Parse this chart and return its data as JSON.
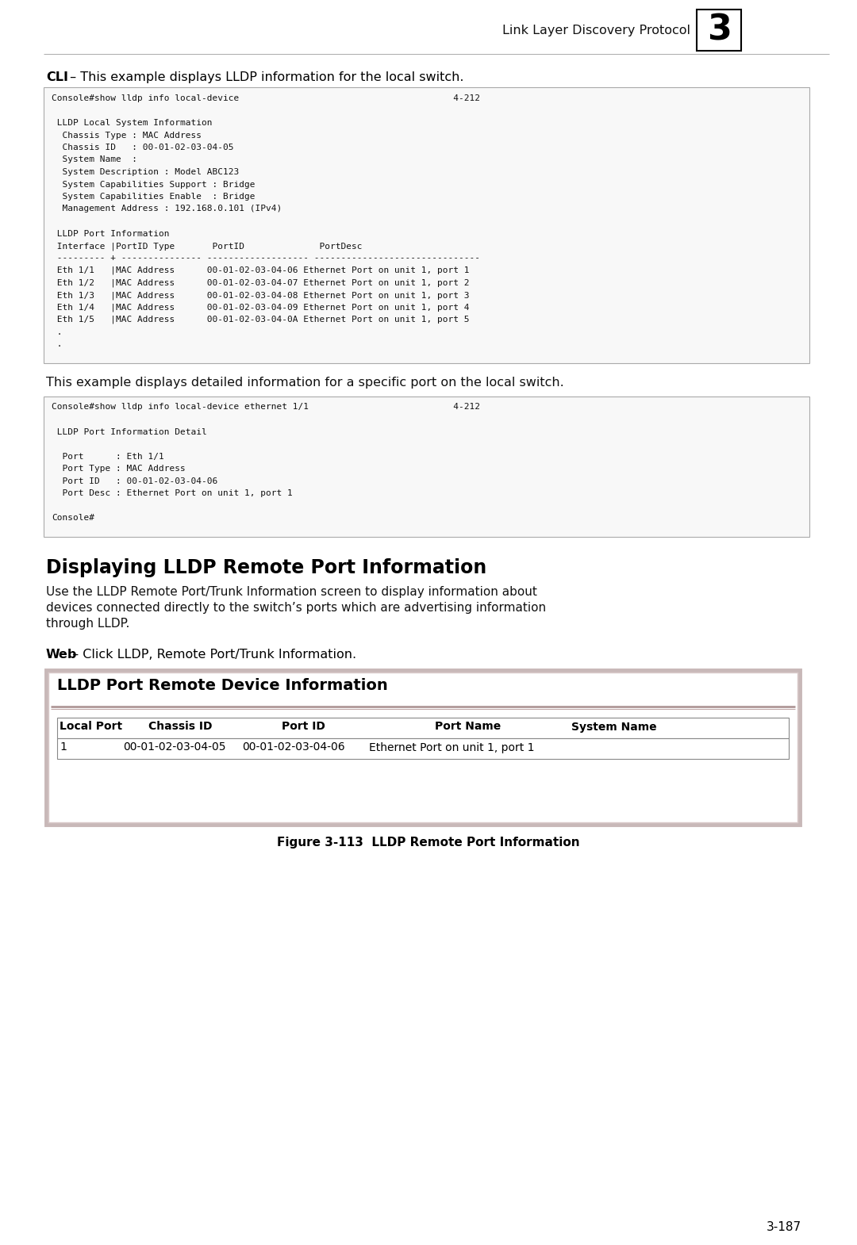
{
  "page_bg": "#ffffff",
  "header_text": "Link Layer Discovery Protocol",
  "header_chapter": "3",
  "cli_label_bold": "CLI",
  "cli_label_rest": " – This example displays LLDP information for the local switch.",
  "box1_lines": [
    "Console#show lldp info local-device                                        4-212",
    "",
    " LLDP Local System Information",
    "  Chassis Type : MAC Address",
    "  Chassis ID   : 00-01-02-03-04-05",
    "  System Name  :",
    "  System Description : Model ABC123",
    "  System Capabilities Support : Bridge",
    "  System Capabilities Enable  : Bridge",
    "  Management Address : 192.168.0.101 (IPv4)",
    "",
    " LLDP Port Information",
    " Interface |PortID Type       PortID              PortDesc",
    " --------- + --------------- ------------------- -------------------------------",
    " Eth 1/1   |MAC Address      00-01-02-03-04-06 Ethernet Port on unit 1, port 1",
    " Eth 1/2   |MAC Address      00-01-02-03-04-07 Ethernet Port on unit 1, port 2",
    " Eth 1/3   |MAC Address      00-01-02-03-04-08 Ethernet Port on unit 1, port 3",
    " Eth 1/4   |MAC Address      00-01-02-03-04-09 Ethernet Port on unit 1, port 4",
    " Eth 1/5   |MAC Address      00-01-02-03-04-0A Ethernet Port on unit 1, port 5",
    " .",
    " ."
  ],
  "para2_text": "This example displays detailed information for a specific port on the local switch.",
  "box2_lines": [
    "Console#show lldp info local-device ethernet 1/1                           4-212",
    "",
    " LLDP Port Information Detail",
    "",
    "  Port      : Eth 1/1",
    "  Port Type : MAC Address",
    "  Port ID   : 00-01-02-03-04-06",
    "  Port Desc : Ethernet Port on unit 1, port 1",
    "",
    "Console#"
  ],
  "section_title": "Displaying LLDP Remote Port Information",
  "section_body_lines": [
    "Use the LLDP Remote Port/Trunk Information screen to display information about",
    "devices connected directly to the switch’s ports which are advertising information",
    "through LLDP."
  ],
  "web_label_bold": "Web",
  "web_label_rest": " – Click LLDP, Remote Port/Trunk Information.",
  "table_title": "LLDP Port Remote Device Information",
  "table_headers": [
    "Local Port",
    "Chassis ID",
    "Port ID",
    "Port Name",
    "System Name"
  ],
  "table_row": [
    "1",
    "00-01-02-03-04-05",
    "00-01-02-03-04-06",
    "Ethernet Port on unit 1, port 1",
    ""
  ],
  "figure_caption": "Figure 3-113  LLDP Remote Port Information",
  "page_number": "3-187",
  "mono_font": "DejaVu Sans Mono",
  "body_font": "DejaVu Sans",
  "code_bg": "#f8f8f8",
  "code_border": "#aaaaaa",
  "body_text_color": "#111111"
}
